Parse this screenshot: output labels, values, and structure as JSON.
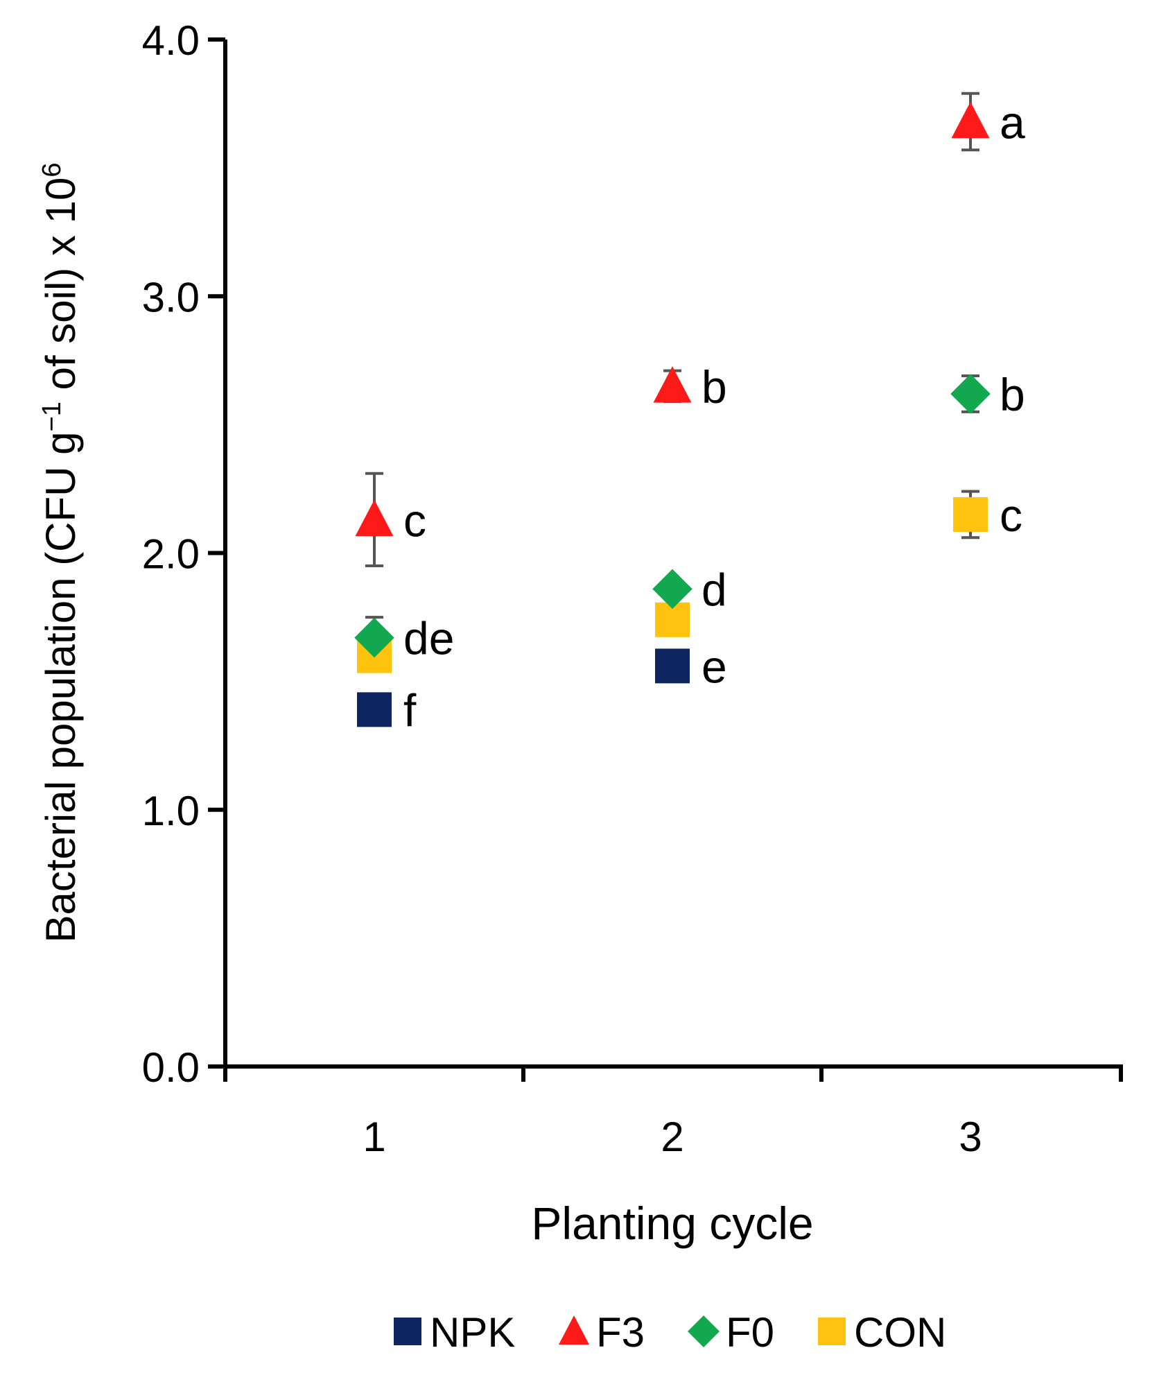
{
  "chart_data": {
    "type": "scatter",
    "title": "",
    "xlabel": "Planting cycle",
    "ylabel": {
      "prefix": "Bacterial population (CFU g",
      "sup1": "−1",
      "middle": " of soil) x 10",
      "sup2": "6"
    },
    "categories": [
      "1",
      "2",
      "3"
    ],
    "ylim": [
      0.0,
      4.0
    ],
    "yticks": [
      "0.0",
      "1.0",
      "2.0",
      "3.0",
      "4.0"
    ],
    "ytick_values": [
      0.0,
      1.0,
      2.0,
      3.0,
      4.0
    ],
    "grid": false,
    "legend_position": "bottom",
    "series": [
      {
        "name": "NPK",
        "marker": "square",
        "color": "#0d2560",
        "values": [
          1.39,
          1.56,
          null
        ],
        "errors": [
          0.02,
          0.03,
          null
        ],
        "labels": [
          "f",
          "e",
          null
        ]
      },
      {
        "name": "F3",
        "marker": "triangle",
        "color": "#ff1a1a",
        "values": [
          2.13,
          2.65,
          3.68
        ],
        "errors": [
          0.18,
          0.06,
          0.11
        ],
        "labels": [
          "c",
          "b",
          "a"
        ]
      },
      {
        "name": "F0",
        "marker": "diamond",
        "color": "#12a84f",
        "values": [
          1.67,
          1.86,
          2.62
        ],
        "errors": [
          0.08,
          0.03,
          0.07
        ],
        "labels": [
          "de",
          "d",
          "b"
        ]
      },
      {
        "name": "CON",
        "marker": "square",
        "color": "#ffc20e",
        "values": [
          1.6,
          1.74,
          2.15
        ],
        "errors": [
          0.02,
          0.03,
          0.09
        ],
        "labels": [
          null,
          null,
          "c"
        ]
      }
    ]
  }
}
